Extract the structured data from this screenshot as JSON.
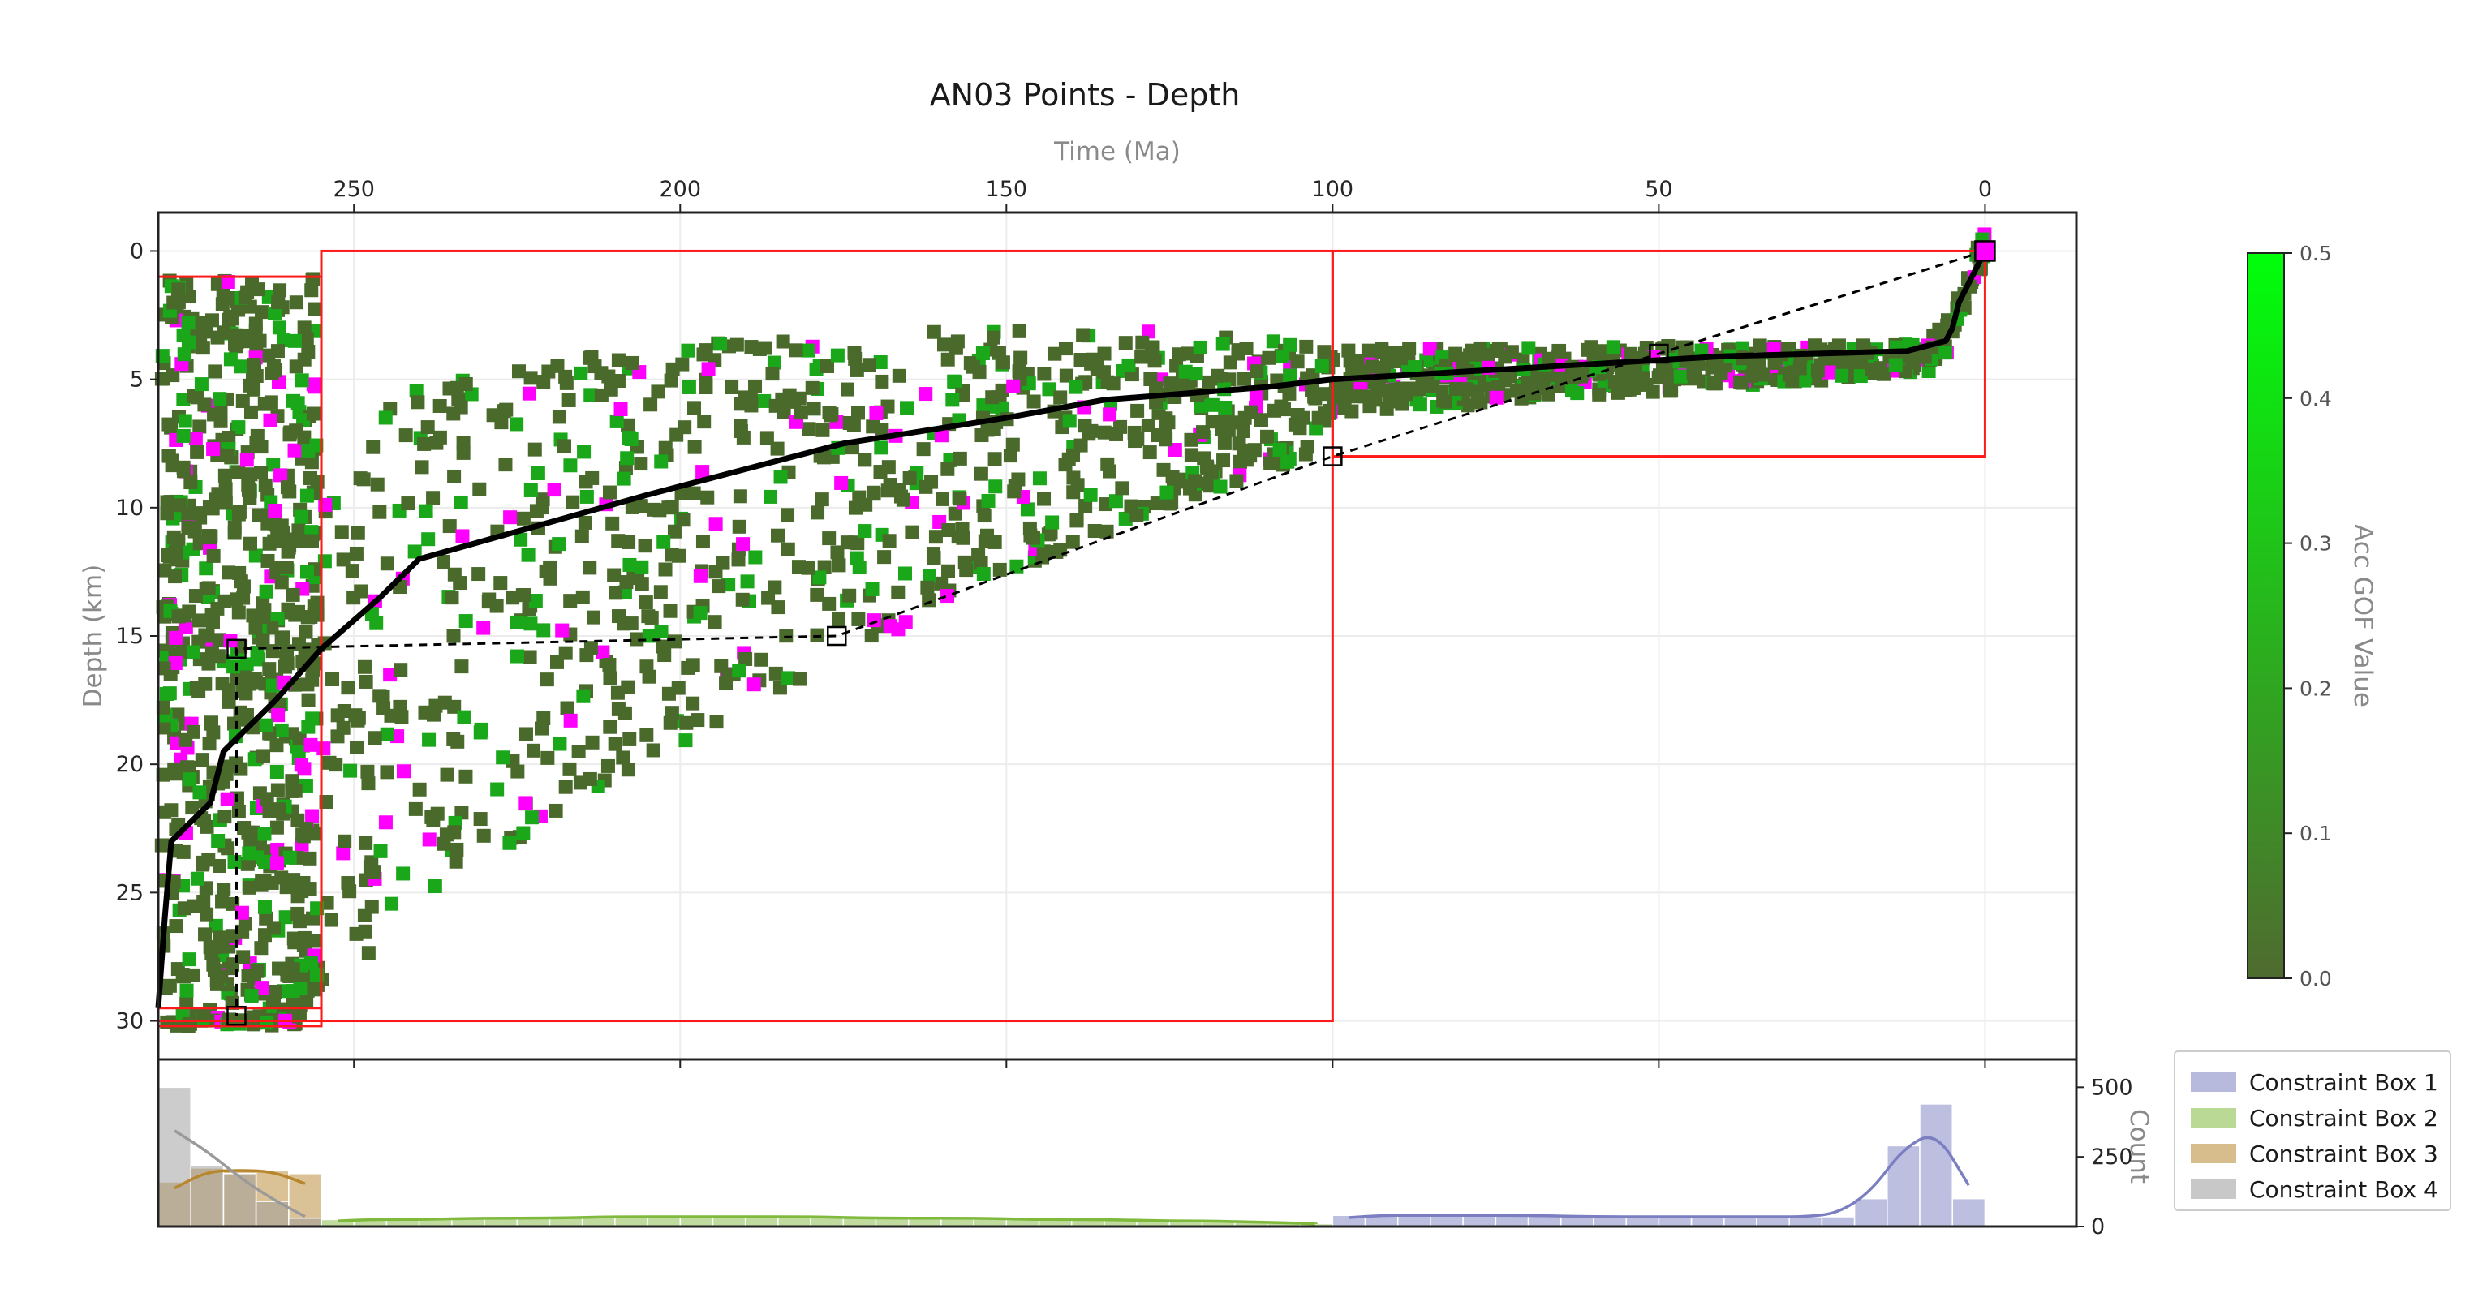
{
  "chart_data": {
    "type": "scatter",
    "title": "AN03 Points - Depth",
    "xlabel": "Time (Ma)",
    "ylabel": "Depth (km)",
    "xlim": [
      280,
      -14
    ],
    "ylim": [
      31.5,
      -1.5
    ],
    "x_inverted": true,
    "y_inverted": true,
    "xticks": [
      250,
      200,
      150,
      100,
      50,
      0
    ],
    "yticks": [
      0,
      5,
      10,
      15,
      20,
      25,
      30
    ],
    "grid": true,
    "colorbar": {
      "label": "Acc GOF Value",
      "range": [
        0.0,
        0.5
      ],
      "ticks": [
        "0.0",
        "0.1",
        "0.2",
        "0.3",
        "0.4",
        "0.5"
      ],
      "color_low": "#4f6b2f",
      "color_high": "#00ff0a"
    },
    "point_colors": {
      "accepted": "#4a6a2c",
      "good": "#1aa81a",
      "highlight": "#ff00ff"
    },
    "constraint_boxes": [
      {
        "name": "Constraint Box 1",
        "time": [
          0,
          100
        ],
        "depth": [
          0,
          8
        ],
        "color": "#7b7fc1"
      },
      {
        "name": "Constraint Box 2",
        "time": [
          100,
          255
        ],
        "depth": [
          0,
          30
        ],
        "color": "#7fba3d"
      },
      {
        "name": "Constraint Box 3",
        "time": [
          255,
          280
        ],
        "depth": [
          1,
          30
        ],
        "color": "#b8862d"
      },
      {
        "name": "Constraint Box 4",
        "time": [
          255,
          280
        ],
        "depth": [
          29.5,
          30.2
        ],
        "color": "#9a9a9a"
      }
    ],
    "best_path": {
      "time": [
        0,
        2,
        4,
        5,
        6,
        12,
        40,
        80,
        100,
        110,
        125,
        135,
        150,
        175,
        205,
        240,
        246,
        255,
        262,
        270,
        272,
        278,
        279,
        280
      ],
      "depth": [
        0,
        1,
        2,
        3,
        3.5,
        3.9,
        4.1,
        4.7,
        5.0,
        5.3,
        5.6,
        5.8,
        6.5,
        7.5,
        9.5,
        12.0,
        13.5,
        15.5,
        17.5,
        19.5,
        21.5,
        23.0,
        26.0,
        29.5
      ]
    },
    "mean_path": {
      "time": [
        0,
        50,
        100,
        176,
        268,
        268
      ],
      "depth": [
        0,
        4,
        8,
        15,
        15.5,
        29.8
      ]
    },
    "histogram": {
      "ylabel": "Count",
      "yticks": [
        0,
        250,
        500
      ],
      "ylim": [
        0,
        600
      ],
      "series": [
        {
          "name": "Constraint Box 1",
          "x": [
            100,
            95,
            90,
            85,
            80,
            75,
            70,
            65,
            60,
            55,
            50,
            45,
            40,
            35,
            30,
            25,
            20,
            15,
            10,
            5
          ],
          "values": [
            40,
            40,
            40,
            40,
            40,
            40,
            40,
            35,
            35,
            35,
            35,
            35,
            35,
            35,
            35,
            35,
            100,
            290,
            440,
            100
          ]
        },
        {
          "name": "Constraint Box 2",
          "x": [
            255,
            250,
            245,
            240,
            235,
            230,
            225,
            220,
            215,
            210,
            205,
            200,
            195,
            190,
            185,
            180,
            175,
            170,
            165,
            160,
            155,
            150,
            145,
            140,
            135,
            130,
            125,
            120,
            115,
            110,
            105
          ],
          "values": [
            25,
            25,
            25,
            25,
            30,
            30,
            30,
            30,
            35,
            35,
            35,
            35,
            35,
            35,
            35,
            35,
            30,
            30,
            30,
            30,
            30,
            25,
            25,
            25,
            25,
            20,
            20,
            20,
            15,
            15,
            10
          ]
        },
        {
          "name": "Constraint Box 3",
          "x": [
            280,
            275,
            270,
            265,
            260
          ],
          "values": [
            160,
            210,
            200,
            200,
            190
          ]
        },
        {
          "name": "Constraint Box 4",
          "x": [
            280,
            275,
            270,
            265,
            260
          ],
          "values": [
            500,
            220,
            190,
            90,
            30
          ]
        }
      ]
    },
    "legend": {
      "placement": "right-bottom",
      "entries": [
        "Constraint Box 1",
        "Constraint Box 2",
        "Constraint Box 3",
        "Constraint Box 4"
      ]
    }
  }
}
